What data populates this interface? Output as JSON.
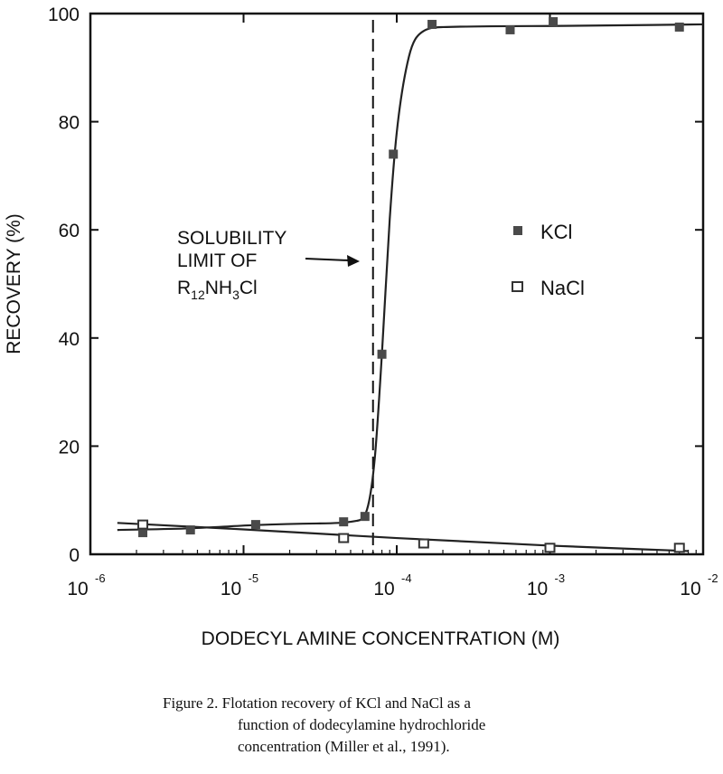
{
  "chart_data": {
    "type": "scatter",
    "x_scale": "log",
    "xlim": [
      1e-06,
      0.01
    ],
    "ylim": [
      0,
      100
    ],
    "xlabel": "DODECYL AMINE CONCENTRATION (M)",
    "ylabel": "RECOVERY (%)",
    "x_ticks": [
      {
        "base": "10",
        "exp": "-6",
        "value": 1e-06
      },
      {
        "base": "10",
        "exp": "-5",
        "value": 1e-05
      },
      {
        "base": "10",
        "exp": "-4",
        "value": 0.0001
      },
      {
        "base": "10",
        "exp": "-3",
        "value": 0.001
      },
      {
        "base": "10",
        "exp": "-2",
        "value": 0.01
      }
    ],
    "y_ticks": [
      "0",
      "20",
      "40",
      "60",
      "80",
      "100"
    ],
    "grid": false,
    "legend_position": "right-middle",
    "series": [
      {
        "name": "KCl",
        "marker": "filled-square",
        "color": "#4a4a4a",
        "points": [
          [
            2.2e-06,
            4
          ],
          [
            4.5e-06,
            4.5
          ],
          [
            1.2e-05,
            5.5
          ],
          [
            4.5e-05,
            6
          ],
          [
            6.2e-05,
            7
          ],
          [
            8e-05,
            37
          ],
          [
            9.5e-05,
            74
          ],
          [
            0.00017,
            98
          ],
          [
            0.00055,
            97
          ],
          [
            0.00105,
            98.5
          ],
          [
            0.007,
            97.5
          ]
        ],
        "curve": [
          [
            1.5e-06,
            4.5
          ],
          [
            4.5e-06,
            4.8
          ],
          [
            1.2e-05,
            5.4
          ],
          [
            3e-05,
            5.7
          ],
          [
            5.5e-05,
            6.2
          ],
          [
            6.5e-05,
            9
          ],
          [
            7.2e-05,
            18
          ],
          [
            8e-05,
            37
          ],
          [
            9e-05,
            62
          ],
          [
            0.0001,
            78
          ],
          [
            0.00012,
            92
          ],
          [
            0.000145,
            96.5
          ],
          [
            0.0002,
            97.5
          ],
          [
            0.001,
            97.7
          ],
          [
            0.01,
            98
          ]
        ]
      },
      {
        "name": "NaCl",
        "marker": "open-square",
        "color": "#333333",
        "points": [
          [
            2.2e-06,
            5.5
          ],
          [
            4.5e-05,
            3
          ],
          [
            0.00015,
            2
          ],
          [
            0.001,
            1.2
          ],
          [
            0.007,
            1.2
          ]
        ],
        "curve": [
          [
            1.5e-06,
            5.8
          ],
          [
            1e-05,
            4.6
          ],
          [
            0.0001,
            3
          ],
          [
            0.001,
            1.6
          ],
          [
            0.008,
            0.6
          ]
        ]
      }
    ],
    "annotation": {
      "line1": "SOLUBILITY",
      "line2": "LIMIT OF",
      "formula_parts": [
        {
          "t": "R",
          "sub": false
        },
        {
          "t": "12",
          "sub": true
        },
        {
          "t": "NH",
          "sub": false
        },
        {
          "t": "3",
          "sub": true
        },
        {
          "t": "Cl",
          "sub": false
        }
      ],
      "limit_x": 7e-05
    }
  },
  "caption": {
    "line1": "Figure 2.  Flotation recovery of KCl and NaCl as a",
    "line2": "function of dodecylamine hydrochloride",
    "line3": "concentration (Miller et al., 1991)."
  }
}
